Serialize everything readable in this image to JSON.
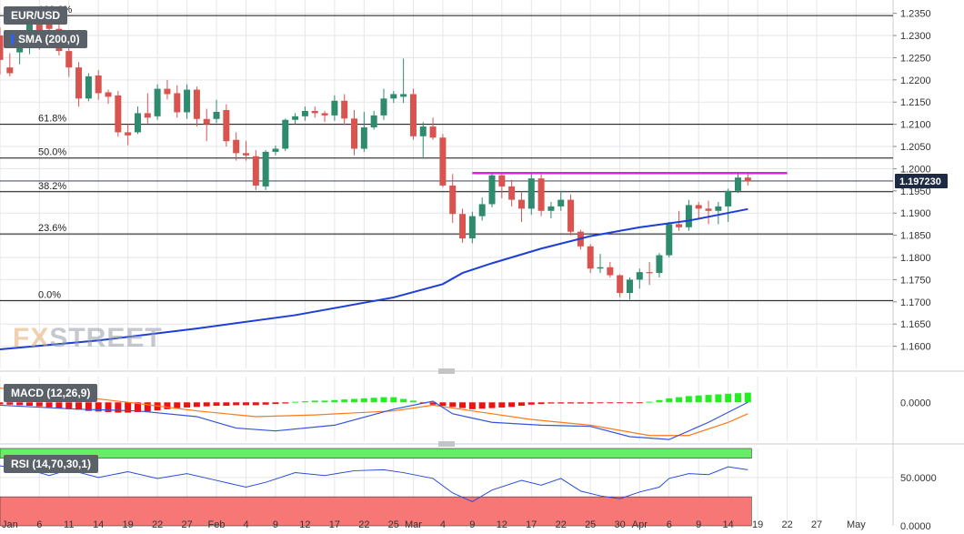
{
  "header": {
    "symbol": "EUR/USD",
    "sma_label": "SMA (200,0)",
    "macd_label": "MACD (12,26,9)",
    "rsi_label": "RSI (14,70,30,1)",
    "watermark_a": "FX",
    "watermark_b": "STREET"
  },
  "colors": {
    "up": "#2e8b6e",
    "down": "#d9534f",
    "sma": "#1d3fd6",
    "resistance": "#e020e0",
    "macd_pos": "#22ee22",
    "macd_neg": "#ee1111",
    "macd_line": "#3355dd",
    "signal_line": "#ff7a1a",
    "rsi_overbought": "#66ee66",
    "rsi_oversold": "#f77777",
    "price_tag": "#1e2a44"
  },
  "chart_data": [
    {
      "type": "candlestick",
      "name": "price",
      "last_price": "1.197230",
      "ylim": [
        1.155,
        1.238
      ],
      "y_ticks": [
        "1.1600",
        "1.1650",
        "1.1700",
        "1.1750",
        "1.1800",
        "1.1850",
        "1.1900",
        "1.1950",
        "1.2000",
        "1.2050",
        "1.2100",
        "1.2150",
        "1.2200",
        "1.2250",
        "1.2300",
        "1.2350"
      ],
      "x_tick_labels": [
        {
          "label": "Jan",
          "i": 0
        },
        {
          "label": "6",
          "i": 4
        },
        {
          "label": "11",
          "i": 7
        },
        {
          "label": "14",
          "i": 10
        },
        {
          "label": "19",
          "i": 13
        },
        {
          "label": "22",
          "i": 16
        },
        {
          "label": "27",
          "i": 19
        },
        {
          "label": "Feb",
          "i": 22
        },
        {
          "label": "4",
          "i": 25
        },
        {
          "label": "9",
          "i": 28
        },
        {
          "label": "12",
          "i": 31
        },
        {
          "label": "17",
          "i": 34
        },
        {
          "label": "22",
          "i": 37
        },
        {
          "label": "25",
          "i": 40
        },
        {
          "label": "Mar",
          "i": 42
        },
        {
          "label": "4",
          "i": 45
        },
        {
          "label": "9",
          "i": 48
        },
        {
          "label": "12",
          "i": 51
        },
        {
          "label": "17",
          "i": 54
        },
        {
          "label": "22",
          "i": 57
        },
        {
          "label": "25",
          "i": 60
        },
        {
          "label": "30",
          "i": 63
        },
        {
          "label": "Apr",
          "i": 65
        },
        {
          "label": "6",
          "i": 68
        },
        {
          "label": "9",
          "i": 71
        },
        {
          "label": "14",
          "i": 74
        },
        {
          "label": "19",
          "i": 77
        },
        {
          "label": "22",
          "i": 80
        },
        {
          "label": "27",
          "i": 83
        },
        {
          "label": "May",
          "i": 87
        }
      ],
      "fib_levels": [
        {
          "label": "100.0%",
          "price": 1.2345
        },
        {
          "label": "61.8%",
          "price": 1.21
        },
        {
          "label": "50.0%",
          "price": 1.2024
        },
        {
          "label": "38.2%",
          "price": 1.1948
        },
        {
          "label": "23.6%",
          "price": 1.1853
        },
        {
          "label": "0.0%",
          "price": 1.1703
        }
      ],
      "resistance": {
        "price": 1.199,
        "from_i": 48,
        "to_i": 80
      },
      "candles": [
        [
          1.23,
          1.2318,
          1.2212,
          1.2245
        ],
        [
          1.2228,
          1.226,
          1.2208,
          1.2215
        ],
        [
          1.2262,
          1.23,
          1.2235,
          1.2275
        ],
        [
          1.2275,
          1.2348,
          1.2258,
          1.2328
        ],
        [
          1.2325,
          1.2345,
          1.2268,
          1.229
        ],
        [
          1.2338,
          1.2352,
          1.2298,
          1.2315
        ],
        [
          1.2315,
          1.2328,
          1.2255,
          1.2265
        ],
        [
          1.2265,
          1.2283,
          1.2207,
          1.2228
        ],
        [
          1.2228,
          1.224,
          1.214,
          1.2158
        ],
        [
          1.2158,
          1.2215,
          1.2152,
          1.2208
        ],
        [
          1.221,
          1.2222,
          1.2155,
          1.217
        ],
        [
          1.2172,
          1.2178,
          1.2146,
          1.2162
        ],
        [
          1.2165,
          1.2175,
          1.2072,
          1.2082
        ],
        [
          1.2082,
          1.21,
          1.2053,
          1.2075
        ],
        [
          1.2082,
          1.214,
          1.2078,
          1.2125
        ],
        [
          1.2125,
          1.217,
          1.2102,
          1.2115
        ],
        [
          1.2118,
          1.219,
          1.211,
          1.218
        ],
        [
          1.218,
          1.22,
          1.2156,
          1.2168
        ],
        [
          1.217,
          1.2188,
          1.2115,
          1.2127
        ],
        [
          1.2127,
          1.219,
          1.2112,
          1.2178
        ],
        [
          1.2178,
          1.2185,
          1.2095,
          1.2112
        ],
        [
          1.2112,
          1.2135,
          1.2062,
          1.21
        ],
        [
          1.2112,
          1.2155,
          1.2103,
          1.2128
        ],
        [
          1.2132,
          1.2145,
          1.205,
          1.2062
        ],
        [
          1.2065,
          1.2082,
          1.2018,
          1.2035
        ],
        [
          1.2035,
          1.2062,
          1.2018,
          1.203
        ],
        [
          1.2028,
          1.2042,
          1.1952,
          1.1962
        ],
        [
          1.196,
          1.2042,
          1.1952,
          1.2038
        ],
        [
          1.2038,
          1.2052,
          1.203,
          1.2045
        ],
        [
          1.2045,
          1.2113,
          1.204,
          1.211
        ],
        [
          1.211,
          1.2125,
          1.21,
          1.2118
        ],
        [
          1.2118,
          1.214,
          1.2108,
          1.213
        ],
        [
          1.213,
          1.214,
          1.2115,
          1.2125
        ],
        [
          1.2125,
          1.213,
          1.2105,
          1.212
        ],
        [
          1.212,
          1.2165,
          1.2108,
          1.2153
        ],
        [
          1.2153,
          1.2168,
          1.2098,
          1.2113
        ],
        [
          1.2113,
          1.2132,
          1.203,
          1.2045
        ],
        [
          1.2045,
          1.2128,
          1.2038,
          1.2093
        ],
        [
          1.2093,
          1.213,
          1.2088,
          1.212
        ],
        [
          1.212,
          1.218,
          1.211,
          1.2158
        ],
        [
          1.2158,
          1.2175,
          1.2148,
          1.2168
        ],
        [
          1.2162,
          1.2248,
          1.2148,
          1.2168
        ],
        [
          1.2168,
          1.218,
          1.2065,
          1.2073
        ],
        [
          1.2073,
          1.2105,
          1.2023,
          1.2095
        ],
        [
          1.2095,
          1.2115,
          1.2065,
          1.207
        ],
        [
          1.207,
          1.2078,
          1.1958,
          1.1962
        ],
        [
          1.1962,
          1.1988,
          1.1878,
          1.1898
        ],
        [
          1.1898,
          1.191,
          1.1833,
          1.1843
        ],
        [
          1.1843,
          1.1903,
          1.1832,
          1.1893
        ],
        [
          1.1893,
          1.1935,
          1.1883,
          1.192
        ],
        [
          1.192,
          1.199,
          1.1913,
          1.1985
        ],
        [
          1.1985,
          1.199,
          1.1933,
          1.196
        ],
        [
          1.196,
          1.1975,
          1.1915,
          1.193
        ],
        [
          1.193,
          1.1948,
          1.188,
          1.191
        ],
        [
          1.191,
          1.1988,
          1.1896,
          1.1978
        ],
        [
          1.1978,
          1.1987,
          1.1893,
          1.1905
        ],
        [
          1.1905,
          1.1925,
          1.1888,
          1.1915
        ],
        [
          1.1915,
          1.195,
          1.1905,
          1.193
        ],
        [
          1.193,
          1.1942,
          1.185,
          1.1858
        ],
        [
          1.1858,
          1.1862,
          1.1818,
          1.1825
        ],
        [
          1.1825,
          1.183,
          1.1765,
          1.1775
        ],
        [
          1.1775,
          1.1808,
          1.1765,
          1.1778
        ],
        [
          1.1778,
          1.179,
          1.1755,
          1.176
        ],
        [
          1.176,
          1.1762,
          1.171,
          1.172
        ],
        [
          1.172,
          1.1755,
          1.1705,
          1.175
        ],
        [
          1.175,
          1.1775,
          1.173,
          1.1767
        ],
        [
          1.1767,
          1.179,
          1.1738,
          1.1765
        ],
        [
          1.1765,
          1.181,
          1.1755,
          1.1805
        ],
        [
          1.1805,
          1.188,
          1.18,
          1.1875
        ],
        [
          1.1875,
          1.1905,
          1.186,
          1.1868
        ],
        [
          1.1868,
          1.193,
          1.186,
          1.1918
        ],
        [
          1.1918,
          1.1925,
          1.1885,
          1.191
        ],
        [
          1.191,
          1.1928,
          1.1875,
          1.1905
        ],
        [
          1.1905,
          1.1925,
          1.1875,
          1.1915
        ],
        [
          1.1915,
          1.1955,
          1.188,
          1.195
        ],
        [
          1.195,
          1.1988,
          1.1945,
          1.198
        ],
        [
          1.198,
          1.199,
          1.1962,
          1.1972
        ]
      ],
      "sma_200": [
        [
          0,
          1.1593
        ],
        [
          10,
          1.1613
        ],
        [
          20,
          1.164
        ],
        [
          30,
          1.167
        ],
        [
          40,
          1.171
        ],
        [
          45,
          1.174
        ],
        [
          47,
          1.1765
        ],
        [
          50,
          1.1787
        ],
        [
          55,
          1.182
        ],
        [
          60,
          1.1848
        ],
        [
          65,
          1.1868
        ],
        [
          70,
          1.1883
        ],
        [
          76,
          1.1909
        ]
      ]
    },
    {
      "type": "histogram",
      "name": "MACD (12,26,9)",
      "y_ticks": [
        "0.0000"
      ],
      "ylim": [
        -0.0068,
        0.0045
      ],
      "histogram": [
        -0.00035,
        -0.0004,
        -0.0005,
        -0.0006,
        -0.0007,
        -0.00085,
        -0.001,
        -0.0012,
        -0.0013,
        -0.0015,
        -0.0016,
        -0.0017,
        -0.0018,
        -0.0018,
        -0.0017,
        -0.0016,
        -0.0014,
        -0.0012,
        -0.001,
        -0.0009,
        -0.0008,
        -0.0007,
        -0.0006,
        -0.0006,
        -0.0005,
        -0.0005,
        -0.0005,
        -0.0004,
        -0.0003,
        -0.0002,
        0.0001,
        0.0002,
        0.0003,
        0.0003,
        0.0004,
        0.0005,
        0.0006,
        0.0007,
        0.0008,
        0.0009,
        0.0009,
        0.0006,
        0.0003,
        -0.0002,
        -0.0004,
        -0.0006,
        -0.0008,
        -0.001,
        -0.0012,
        -0.0011,
        -0.001,
        -0.0009,
        -0.0008,
        -0.0006,
        -0.0004,
        -0.0003,
        -0.0002,
        -0.0002,
        -0.0002,
        -0.0002,
        -0.0002,
        -0.0001,
        -0.0001,
        -0.0001,
        -0.0001,
        -0.0001,
        0.0001,
        0.0004,
        0.0007,
        0.0009,
        0.0011,
        0.0012,
        0.0013,
        0.0014,
        0.0015,
        0.0016,
        0.0017
      ],
      "macd_line": [
        [
          0,
          -0.0005
        ],
        [
          8,
          -0.0012
        ],
        [
          14,
          -0.0015
        ],
        [
          20,
          -0.0025
        ],
        [
          24,
          -0.0045
        ],
        [
          28,
          -0.005
        ],
        [
          34,
          -0.004
        ],
        [
          40,
          -0.0012
        ],
        [
          44,
          0.0002
        ],
        [
          46,
          -0.002
        ],
        [
          50,
          -0.0035
        ],
        [
          55,
          -0.004
        ],
        [
          60,
          -0.0042
        ],
        [
          64,
          -0.006
        ],
        [
          68,
          -0.0065
        ],
        [
          72,
          -0.0035
        ],
        [
          76,
          0.0
        ]
      ],
      "signal_line": [
        [
          0,
          0.0025
        ],
        [
          8,
          0.001
        ],
        [
          14,
          -0.0002
        ],
        [
          20,
          -0.0015
        ],
        [
          26,
          -0.0025
        ],
        [
          32,
          -0.0022
        ],
        [
          40,
          -0.0015
        ],
        [
          44,
          -0.0005
        ],
        [
          48,
          -0.0015
        ],
        [
          54,
          -0.003
        ],
        [
          60,
          -0.004
        ],
        [
          66,
          -0.0058
        ],
        [
          70,
          -0.0058
        ],
        [
          74,
          -0.0035
        ],
        [
          76,
          -0.002
        ]
      ]
    },
    {
      "type": "line",
      "name": "RSI (14,70,30,1)",
      "y_ticks": [
        "50.0000",
        "0.0000"
      ],
      "ylim": [
        0,
        80
      ],
      "overbought": 70,
      "oversold": 30,
      "rsi": [
        [
          0,
          62
        ],
        [
          3,
          58
        ],
        [
          5,
          52
        ],
        [
          7,
          58
        ],
        [
          10,
          50
        ],
        [
          13,
          56
        ],
        [
          16,
          49
        ],
        [
          19,
          54
        ],
        [
          22,
          47
        ],
        [
          25,
          40
        ],
        [
          27,
          45
        ],
        [
          30,
          55
        ],
        [
          33,
          52
        ],
        [
          36,
          57
        ],
        [
          39,
          58
        ],
        [
          41,
          55
        ],
        [
          44,
          49
        ],
        [
          46,
          34
        ],
        [
          48,
          25
        ],
        [
          50,
          37
        ],
        [
          53,
          47
        ],
        [
          55,
          42
        ],
        [
          57,
          49
        ],
        [
          59,
          36
        ],
        [
          61,
          31
        ],
        [
          63,
          28
        ],
        [
          65,
          35
        ],
        [
          67,
          40
        ],
        [
          68,
          49
        ],
        [
          70,
          54
        ],
        [
          72,
          53
        ],
        [
          74,
          61
        ],
        [
          76,
          58
        ]
      ]
    }
  ]
}
